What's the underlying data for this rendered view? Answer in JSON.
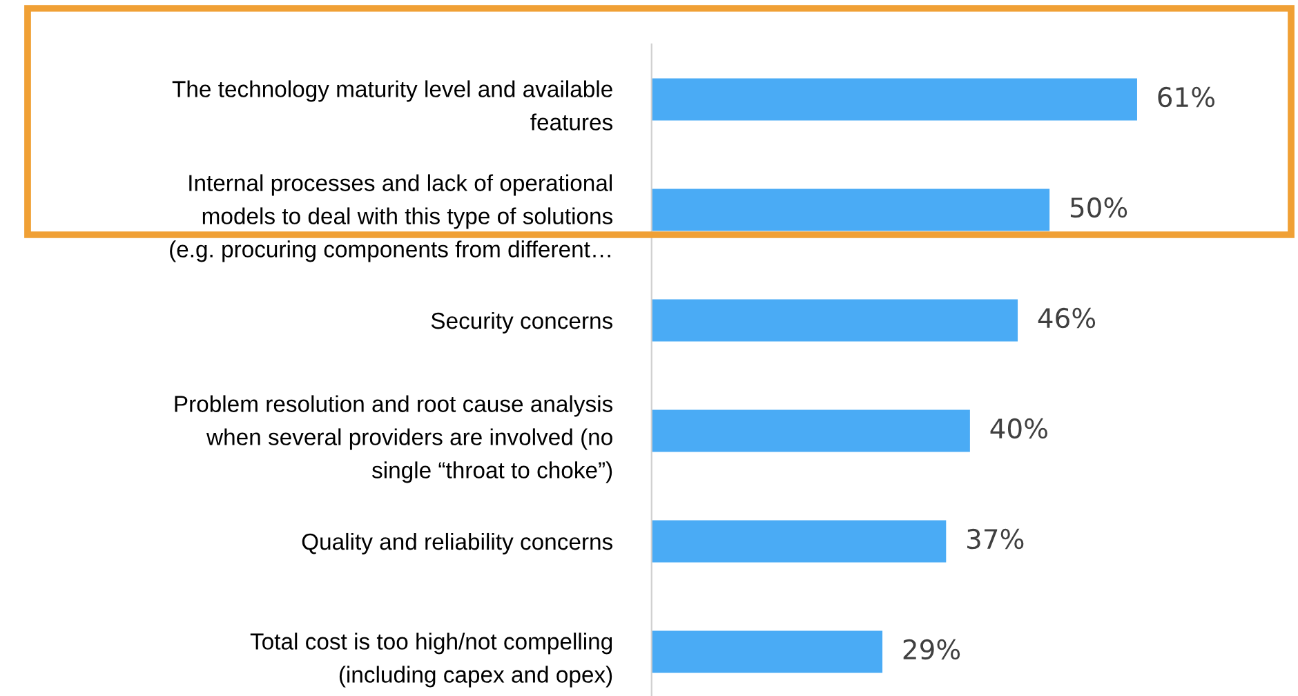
{
  "chart_data": {
    "type": "bar",
    "orientation": "horizontal",
    "categories": [
      "The technology maturity level and available\nfeatures",
      "Internal processes and lack of operational\nmodels to deal with this type of solutions\n(e.g. procuring components from different…",
      "Security concerns",
      "Problem resolution and root cause analysis\nwhen several providers are involved (no\nsingle “throat to choke”)",
      "Quality and reliability concerns",
      "Total cost is too high/not compelling\n(including capex and opex)"
    ],
    "values": [
      61,
      50,
      46,
      40,
      37,
      29
    ],
    "value_labels": [
      "61%",
      "50%",
      "46%",
      "40%",
      "37%",
      "29%"
    ],
    "color": "#4aabf5",
    "grid": false,
    "legend": false
  }
}
